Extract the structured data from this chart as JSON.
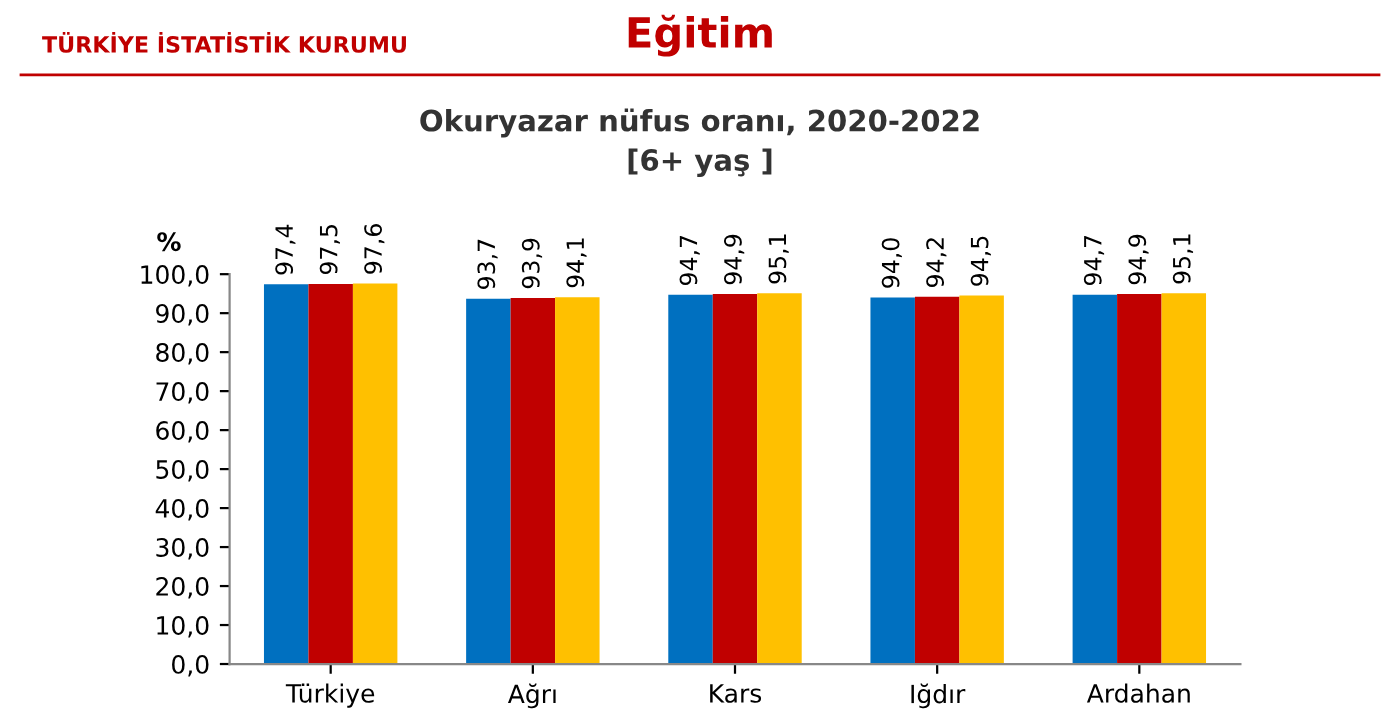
{
  "chart_data": {
    "type": "bar",
    "title": "Eğitim",
    "subtitle": "Okuryazar nüfus oranı, 2020-2022\n[6+ yaş ]",
    "ylabel": "%",
    "annotations": [
      "TÜRKİYE İSTATİSTİK KURUMU"
    ],
    "categories": [
      "Türkiye",
      "Ağrı",
      "Kars",
      "Iğdır",
      "Ardahan"
    ],
    "series": [
      {
        "color": "#0070c0",
        "values": [
          97.4,
          93.7,
          94.7,
          94.0,
          94.7
        ],
        "value_labels": [
          "97,4",
          "93,7",
          "94,7",
          "94,0",
          "94,7"
        ]
      },
      {
        "color": "#c00000",
        "values": [
          97.5,
          93.9,
          94.9,
          94.2,
          94.9
        ],
        "value_labels": [
          "97,5",
          "93,9",
          "94,9",
          "94,2",
          "94,9"
        ]
      },
      {
        "color": "#ffc000",
        "values": [
          97.6,
          94.1,
          95.1,
          94.5,
          95.1
        ],
        "value_labels": [
          "97,6",
          "94,1",
          "95,1",
          "94,5",
          "95,1"
        ]
      }
    ],
    "ylim": [
      0,
      100
    ],
    "yticks": [
      {
        "value": 0,
        "label": "0,0"
      },
      {
        "value": 10,
        "label": "10,0"
      },
      {
        "value": 20,
        "label": "20,0"
      },
      {
        "value": 30,
        "label": "30,0"
      },
      {
        "value": 40,
        "label": "40,0"
      },
      {
        "value": 50,
        "label": "50,0"
      },
      {
        "value": 60,
        "label": "60,0"
      },
      {
        "value": 70,
        "label": "70,0"
      },
      {
        "value": 80,
        "label": "80,0"
      },
      {
        "value": 90,
        "label": "90,0"
      },
      {
        "value": 100,
        "label": "100,0"
      }
    ],
    "grid": false,
    "legend": false
  }
}
